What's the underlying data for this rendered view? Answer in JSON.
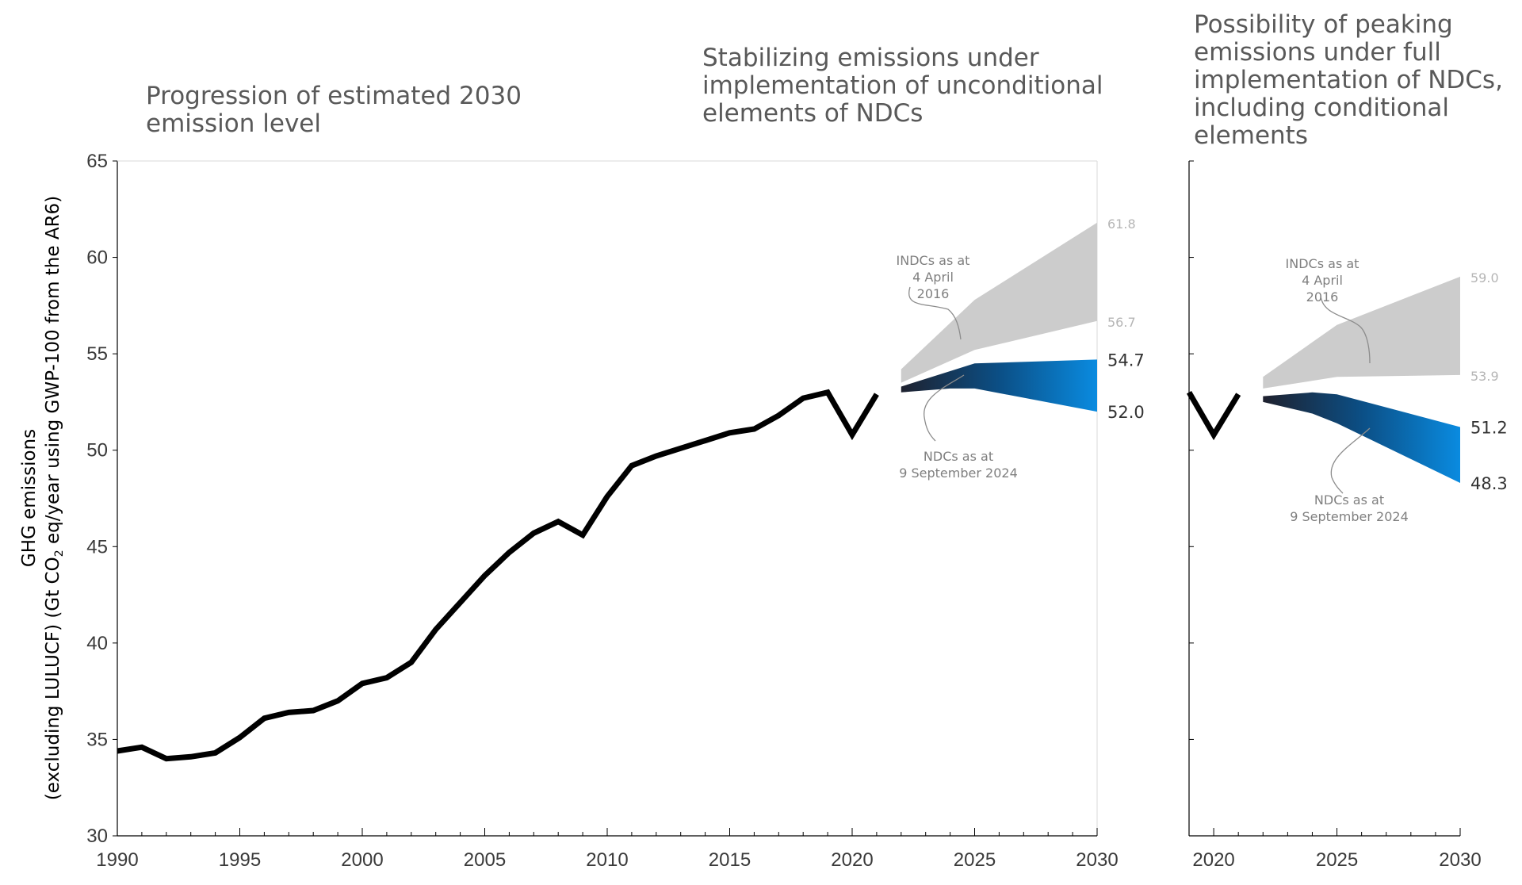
{
  "chart_data": [
    {
      "type": "line",
      "panel": "main",
      "title": [
        "Progression of estimated 2030",
        "emission level"
      ],
      "subtitle": [
        "Stabilizing emissions under",
        "implementation of unconditional",
        "elements of NDCs"
      ],
      "ylabel": {
        "line1": "GHG emissions",
        "line2_pre": "(excluding LULUCF) (Gt CO",
        "line2_sub": "2",
        "line2_post": " eq/year using GWP-100 from the AR6)"
      },
      "ylim": [
        30,
        65
      ],
      "yticks": [
        30,
        35,
        40,
        45,
        50,
        55,
        60,
        65
      ],
      "xlim": [
        1990,
        2030
      ],
      "xticks": [
        1990,
        1995,
        2000,
        2005,
        2010,
        2015,
        2020,
        2025,
        2030
      ],
      "colors": {
        "history": "#000000",
        "indc_band": "#cccccc",
        "ndc_start": "#1e2230",
        "ndc_mid": "#0b4f86",
        "ndc_end": "#0a8be0",
        "annotation_line": "#8c8c8c"
      },
      "series": [
        {
          "name": "Historical emissions",
          "x": [
            1990,
            1991,
            1992,
            1993,
            1994,
            1995,
            1996,
            1997,
            1998,
            1999,
            2000,
            2001,
            2002,
            2003,
            2004,
            2005,
            2006,
            2007,
            2008,
            2009,
            2010,
            2011,
            2012,
            2013,
            2014,
            2015,
            2016,
            2017,
            2018,
            2019,
            2020,
            2021
          ],
          "y": [
            34.4,
            34.6,
            34.0,
            34.1,
            34.3,
            35.1,
            36.1,
            36.4,
            36.5,
            37.0,
            37.9,
            38.2,
            39.0,
            40.7,
            42.1,
            43.5,
            44.7,
            45.7,
            46.3,
            45.6,
            47.6,
            49.2,
            49.7,
            50.1,
            50.5,
            50.9,
            51.1,
            51.8,
            52.7,
            53.0,
            50.8,
            52.9
          ]
        }
      ],
      "bands": [
        {
          "name": "INDCs as at 4 April 2016",
          "x": [
            2022,
            2025,
            2030
          ],
          "upper": [
            54.2,
            57.8,
            61.8
          ],
          "lower": [
            53.5,
            55.2,
            56.7
          ]
        },
        {
          "name": "NDCs as at 9 September 2024",
          "x": [
            2022,
            2024,
            2025,
            2030
          ],
          "upper": [
            53.3,
            54.1,
            54.5,
            54.7
          ],
          "lower": [
            53.0,
            53.2,
            53.2,
            52.0
          ]
        }
      ],
      "end_labels": {
        "indc_high": "61.8",
        "indc_low": "56.7",
        "ndc_high": "54.7",
        "ndc_low": "52.0"
      },
      "annotations": {
        "indc": [
          "INDCs as at",
          "4 April",
          "2016"
        ],
        "ndc": [
          "NDCs as at",
          "9 September 2024"
        ]
      }
    },
    {
      "type": "area",
      "panel": "right",
      "title": [
        "Possibility of peaking",
        "emissions under full",
        "implementation of NDCs,",
        "including conditional",
        "elements"
      ],
      "ylim": [
        30,
        65
      ],
      "xlim": [
        2019,
        2030
      ],
      "xticks": [
        2020,
        2025,
        2030
      ],
      "series": [
        {
          "name": "Historical emissions",
          "x": [
            2019,
            2020,
            2021
          ],
          "y": [
            53.0,
            50.8,
            52.9
          ]
        }
      ],
      "bands": [
        {
          "name": "INDCs as at 4 April 2016",
          "x": [
            2022,
            2025,
            2030
          ],
          "upper": [
            53.8,
            56.5,
            59.0
          ],
          "lower": [
            53.2,
            53.8,
            53.9
          ]
        },
        {
          "name": "NDCs as at 9 September 2024",
          "x": [
            2022,
            2024,
            2025,
            2030
          ],
          "upper": [
            52.8,
            53.0,
            52.9,
            51.2
          ],
          "lower": [
            52.5,
            51.9,
            51.4,
            48.3
          ]
        }
      ],
      "end_labels": {
        "indc_high": "59.0",
        "indc_low": "53.9",
        "ndc_high": "51.2",
        "ndc_low": "48.3"
      },
      "annotations": {
        "indc": [
          "INDCs as at",
          "4 April",
          "2016"
        ],
        "ndc": [
          "NDCs as at",
          "9 September 2024"
        ]
      }
    }
  ]
}
